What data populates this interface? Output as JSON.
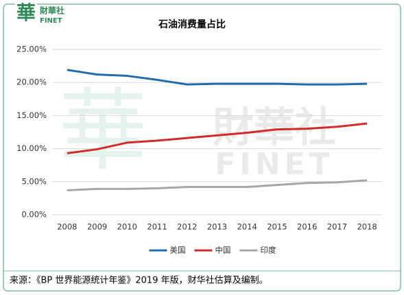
{
  "logo": {
    "mark": "華",
    "cn": "財華社",
    "en": "FINET"
  },
  "chart_data": {
    "type": "line",
    "title": "石油消费量占比",
    "categories": [
      "2008",
      "2009",
      "2010",
      "2011",
      "2012",
      "2013",
      "2014",
      "2015",
      "2016",
      "2017",
      "2018"
    ],
    "series": [
      {
        "name": "美国",
        "color": "#1f6db0",
        "values": [
          21.9,
          21.2,
          21.0,
          20.4,
          19.7,
          19.8,
          19.8,
          19.8,
          19.7,
          19.7,
          19.8
        ]
      },
      {
        "name": "中国",
        "color": "#d42a2a",
        "values": [
          9.3,
          9.9,
          10.9,
          11.2,
          11.6,
          12.0,
          12.4,
          12.9,
          13.0,
          13.3,
          13.8
        ]
      },
      {
        "name": "印度",
        "color": "#a6a6a6",
        "values": [
          3.7,
          3.9,
          3.9,
          4.0,
          4.2,
          4.2,
          4.2,
          4.5,
          4.8,
          4.9,
          5.2
        ]
      }
    ],
    "ylim": [
      0,
      25
    ],
    "yticks": [
      {
        "value": 0,
        "label": "0.00%"
      },
      {
        "value": 5,
        "label": "5.00%"
      },
      {
        "value": 10,
        "label": "10.00%"
      },
      {
        "value": 15,
        "label": "15.00%"
      },
      {
        "value": 20,
        "label": "20.00%"
      },
      {
        "value": 25,
        "label": "25.00%"
      }
    ],
    "grid": true,
    "legend": "bottom",
    "source": "来源：《BP 世界能源统计年鉴》2019 年版，财华社估算及编制。"
  }
}
